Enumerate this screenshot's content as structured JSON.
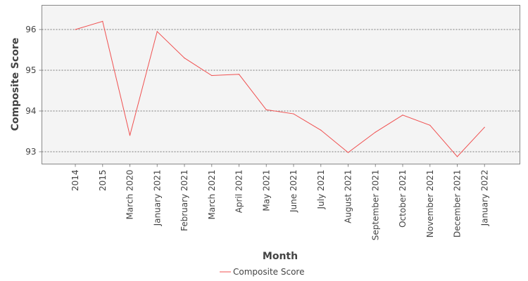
{
  "chart_data": {
    "type": "line",
    "categories": [
      "2014",
      "2015",
      "March 2020",
      "January 2021",
      "February 2021",
      "March 2021",
      "April 2021",
      "May 2021",
      "June 2021",
      "July 2021",
      "August 2021",
      "September 2021",
      "October 2021",
      "November 2021",
      "December 2021",
      "January 2022"
    ],
    "series": [
      {
        "name": "Composite Score",
        "color": "#f05050",
        "values": [
          96.0,
          96.2,
          93.4,
          95.95,
          95.3,
          94.87,
          94.9,
          94.03,
          93.93,
          93.53,
          92.98,
          93.48,
          93.9,
          93.65,
          92.88,
          93.6
        ]
      }
    ],
    "xlabel": "Month",
    "ylabel": "Composite Score",
    "yticks": [
      93,
      94,
      95,
      96
    ],
    "ylim": [
      92.7,
      96.6
    ],
    "grid": true,
    "legend_position": "bottom-center",
    "plot_background": "#f4f4f4"
  }
}
